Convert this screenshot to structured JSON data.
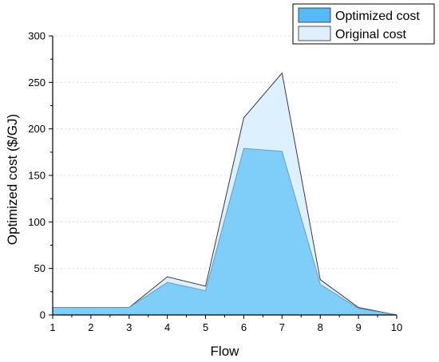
{
  "chart_data": {
    "type": "area",
    "x": [
      1,
      2,
      3,
      4,
      5,
      6,
      7,
      8,
      9,
      10
    ],
    "series": [
      {
        "name": "Original cost",
        "values": [
          8,
          8,
          8,
          41,
          31,
          212,
          260,
          38,
          8,
          0
        ],
        "color": "#dcf1fd"
      },
      {
        "name": "Optimized cost",
        "values": [
          8,
          8,
          8,
          35,
          26,
          179,
          176,
          33,
          7,
          0
        ],
        "color": "#7fcdf9"
      }
    ],
    "title": "",
    "xlabel": "Flow",
    "ylabel": "Optimized cost ($/GJ)",
    "xlim": [
      1,
      10
    ],
    "ylim": [
      0,
      300
    ],
    "yticks": [
      0,
      50,
      100,
      150,
      200,
      250,
      300
    ],
    "xticks": [
      1,
      2,
      3,
      4,
      5,
      6,
      7,
      8,
      9,
      10
    ],
    "grid": "horizontal dashed",
    "legend": {
      "position": "top-right",
      "entries": [
        {
          "label": "Optimized cost",
          "swatch": "#56baf7"
        },
        {
          "label": "Original cost",
          "swatch": "#dcf1fd"
        }
      ]
    }
  }
}
